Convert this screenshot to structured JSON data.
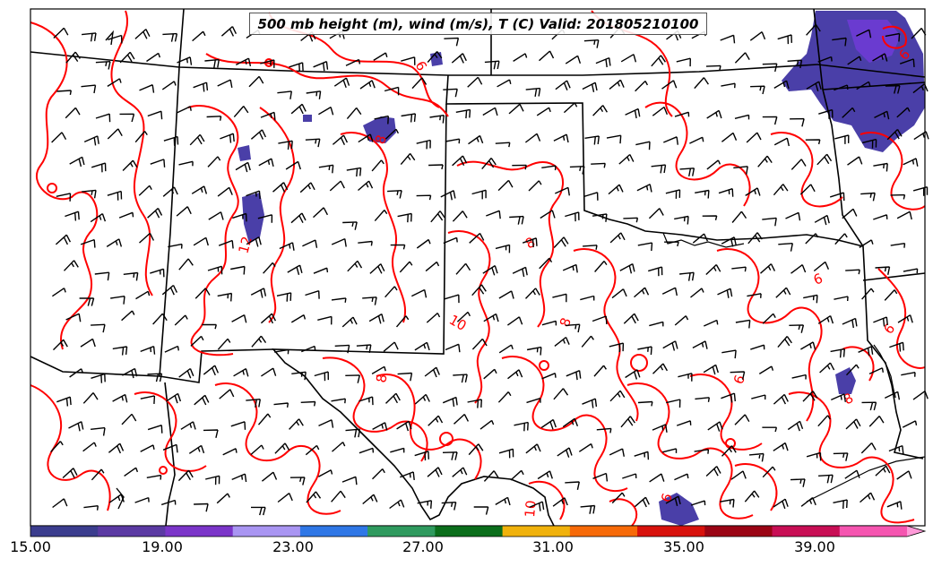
{
  "title": "500 mb height (m), wind (m/s), T (C) Valid: 201805210100",
  "map": {
    "region": "southern-plains",
    "temperature_contour_color": "#ff0000",
    "border_color": "#000000",
    "wind_barb_color": "#000000",
    "shading_color": "#4a3fa8",
    "contour_labels": [
      "6",
      "8",
      "12",
      "8",
      "10",
      "8",
      "8",
      "6",
      "6",
      "8",
      "6",
      "6",
      "10",
      "6"
    ]
  },
  "colorbar": {
    "colors": [
      "#3b3d8e",
      "#5b3aa3",
      "#7b35c9",
      "#a995f2",
      "#2f77e6",
      "#2f9a5e",
      "#0b6e1b",
      "#f0b20c",
      "#f76a08",
      "#d8120c",
      "#9a0414",
      "#c80e55",
      "#f555b0",
      "#ff9ad8"
    ],
    "tick_labels": [
      "15.00",
      "19.00",
      "23.00",
      "27.00",
      "31.00",
      "35.00",
      "39.00"
    ]
  }
}
